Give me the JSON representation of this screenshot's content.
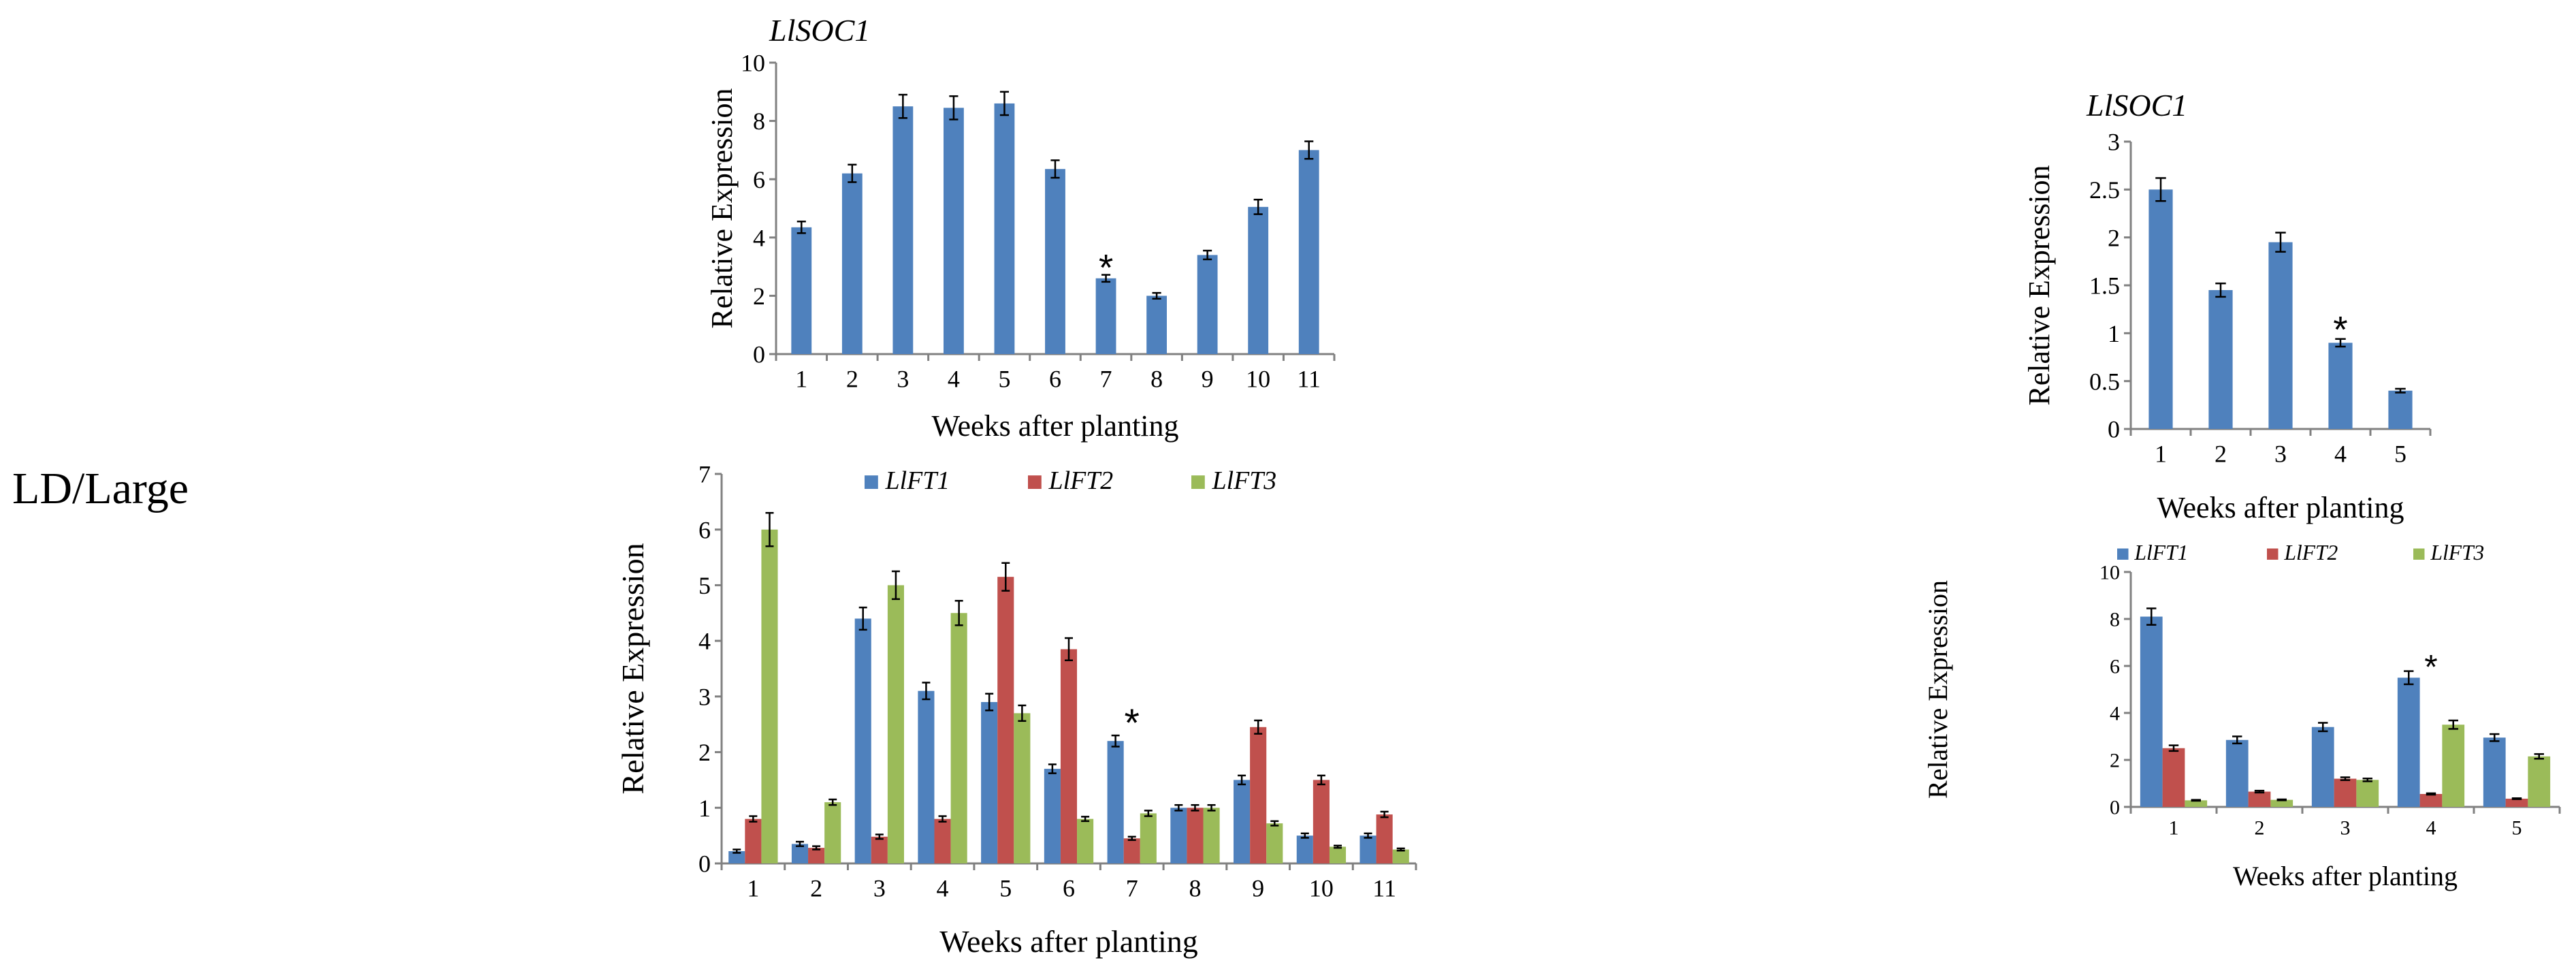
{
  "page": {
    "row_label": "LD/Large"
  },
  "colors": {
    "LlFT1": "#4f81bd",
    "LlFT2": "#c0504d",
    "LlFT3": "#9bbb59",
    "axis": "#808080",
    "errorbar": "#000000"
  },
  "chart_data": [
    {
      "id": "soc1-11w",
      "type": "bar",
      "title": "LlSOC1",
      "xlabel": "Weeks after planting",
      "ylabel": "Relative Expression",
      "ylim": [
        0,
        10
      ],
      "yticks": [
        0,
        2,
        4,
        6,
        8,
        10
      ],
      "categories": [
        "1",
        "2",
        "3",
        "4",
        "5",
        "6",
        "7",
        "8",
        "9",
        "10",
        "11"
      ],
      "legend": "none",
      "series": [
        {
          "name": "LlSOC1",
          "color_key": "LlFT1",
          "values": [
            4.35,
            6.2,
            8.5,
            8.45,
            8.6,
            6.35,
            2.6,
            2.0,
            3.4,
            5.05,
            7.0
          ],
          "errors": [
            0.2,
            0.3,
            0.4,
            0.4,
            0.4,
            0.3,
            0.12,
            0.1,
            0.15,
            0.25,
            0.3
          ]
        }
      ],
      "annotations": [
        {
          "text": "*",
          "category": "7",
          "value": 3.1
        }
      ]
    },
    {
      "id": "ft-11w",
      "type": "bar",
      "title": "",
      "xlabel": "Weeks after planting",
      "ylabel": "Relative Expression",
      "ylim": [
        0,
        7
      ],
      "yticks": [
        0,
        1,
        2,
        3,
        4,
        5,
        6,
        7
      ],
      "categories": [
        "1",
        "2",
        "3",
        "4",
        "5",
        "6",
        "7",
        "8",
        "9",
        "10",
        "11"
      ],
      "legend": "top",
      "series": [
        {
          "name": "LlFT1",
          "color_key": "LlFT1",
          "values": [
            0.22,
            0.35,
            4.4,
            3.1,
            2.9,
            1.7,
            2.2,
            1.0,
            1.5,
            0.5,
            0.5
          ],
          "errors": [
            0.03,
            0.04,
            0.2,
            0.15,
            0.15,
            0.08,
            0.1,
            0.05,
            0.08,
            0.04,
            0.04
          ]
        },
        {
          "name": "LlFT2",
          "color_key": "LlFT2",
          "values": [
            0.8,
            0.28,
            0.48,
            0.8,
            5.15,
            3.85,
            0.45,
            1.0,
            2.45,
            1.5,
            0.88
          ],
          "errors": [
            0.05,
            0.03,
            0.04,
            0.05,
            0.25,
            0.2,
            0.03,
            0.05,
            0.12,
            0.08,
            0.05
          ]
        },
        {
          "name": "LlFT3",
          "color_key": "LlFT3",
          "values": [
            6.0,
            1.1,
            5.0,
            4.5,
            2.7,
            0.8,
            0.9,
            1.0,
            0.72,
            0.3,
            0.25
          ],
          "errors": [
            0.3,
            0.05,
            0.25,
            0.22,
            0.14,
            0.04,
            0.05,
            0.05,
            0.04,
            0.02,
            0.02
          ]
        }
      ],
      "annotations": [
        {
          "text": "*",
          "category": "7",
          "value": 2.6
        }
      ]
    },
    {
      "id": "soc1-5w",
      "type": "bar",
      "title": "LlSOC1",
      "xlabel": "Weeks after planting",
      "ylabel": "Relative Expression",
      "ylim": [
        0,
        3
      ],
      "yticks": [
        "0",
        "0.5",
        "1",
        "1.5",
        "2",
        "2.5",
        "3"
      ],
      "categories": [
        "1",
        "2",
        "3",
        "4",
        "5"
      ],
      "legend": "none",
      "series": [
        {
          "name": "LlSOC1",
          "color_key": "LlFT1",
          "values": [
            2.5,
            1.45,
            1.95,
            0.9,
            0.4
          ],
          "errors": [
            0.12,
            0.07,
            0.1,
            0.04,
            0.02
          ]
        }
      ],
      "annotations": [
        {
          "text": "*",
          "category": "4",
          "value": 1.08
        }
      ]
    },
    {
      "id": "ft-5w",
      "type": "bar",
      "title": "",
      "xlabel": "Weeks after planting",
      "ylabel": "Relative Expression",
      "ylim": [
        0,
        10
      ],
      "yticks": [
        0,
        2,
        4,
        6,
        8,
        10
      ],
      "categories": [
        "1",
        "2",
        "3",
        "4",
        "5"
      ],
      "legend": "top",
      "series": [
        {
          "name": "LlFT1",
          "color_key": "LlFT1",
          "values": [
            8.1,
            2.85,
            3.4,
            5.5,
            2.95
          ],
          "errors": [
            0.35,
            0.15,
            0.18,
            0.28,
            0.15
          ]
        },
        {
          "name": "LlFT2",
          "color_key": "LlFT2",
          "values": [
            2.5,
            0.65,
            1.2,
            0.55,
            0.35
          ],
          "errors": [
            0.12,
            0.04,
            0.06,
            0.03,
            0.02
          ]
        },
        {
          "name": "LlFT3",
          "color_key": "LlFT3",
          "values": [
            0.28,
            0.3,
            1.15,
            3.5,
            2.15
          ],
          "errors": [
            0.02,
            0.02,
            0.06,
            0.18,
            0.1
          ]
        }
      ],
      "annotations": [
        {
          "text": "*",
          "category": "4",
          "value": 6.1
        }
      ]
    }
  ]
}
